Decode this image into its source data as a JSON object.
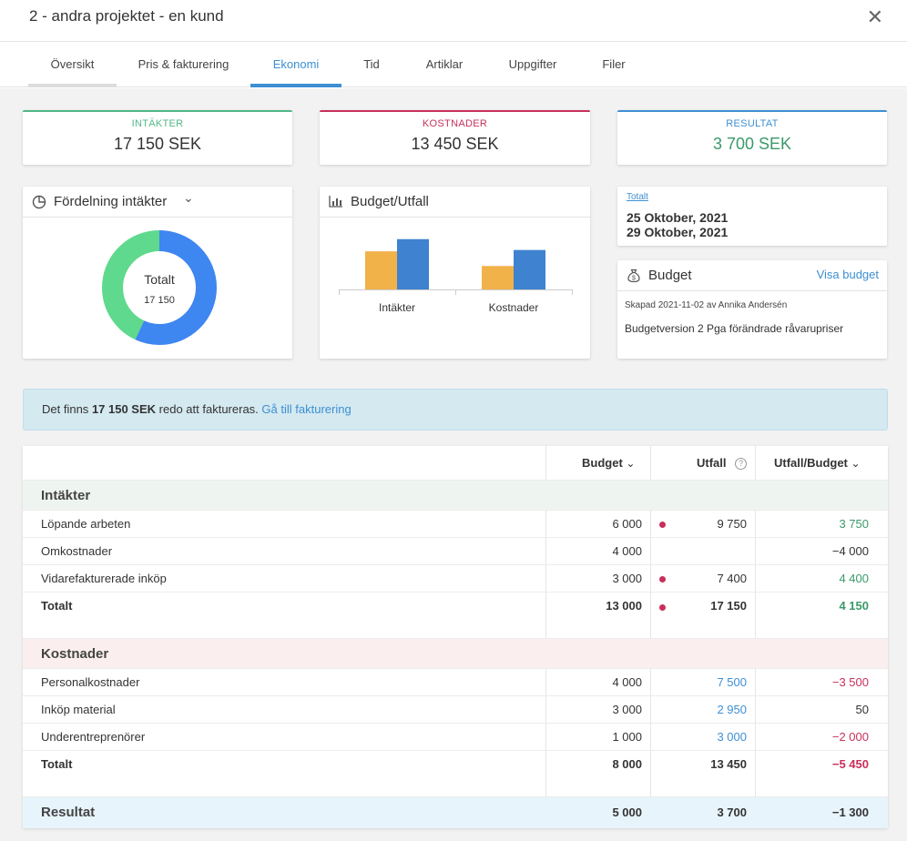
{
  "window": {
    "title": "2 - andra projektet - en kund",
    "close_glyph": "✕"
  },
  "tabs": [
    {
      "label": "Översikt"
    },
    {
      "label": "Pris & fakturering"
    },
    {
      "label": "Ekonomi"
    },
    {
      "label": "Tid"
    },
    {
      "label": "Artiklar"
    },
    {
      "label": "Uppgifter"
    },
    {
      "label": "Filer"
    }
  ],
  "active_tab": "Ekonomi",
  "kpis": {
    "income": {
      "label": "INTÄKTER",
      "value": "17 150 SEK",
      "color": "#52b788"
    },
    "costs": {
      "label": "KOSTNADER",
      "value": "13 450 SEK",
      "color": "#c8305a"
    },
    "result": {
      "label": "RESULTAT",
      "value": "3 700 SEK",
      "color": "#3d8fd3"
    }
  },
  "distribution": {
    "title": "Fördelning intäkter",
    "chevron": "⌄",
    "center_label": "Totalt",
    "center_value": "17 150",
    "slices": [
      {
        "value": 9750,
        "color": "#3e86f0"
      },
      {
        "value": 7400,
        "color": "#5fd98d"
      }
    ]
  },
  "budget_outcome": {
    "title": "Budget/Utfall",
    "chart_data": {
      "type": "bar",
      "categories": [
        "Intäkter",
        "Kostnader"
      ],
      "series": [
        {
          "values": [
            13000,
            8000
          ],
          "color": "#f2b24a"
        },
        {
          "values": [
            17150,
            13450
          ],
          "color": "#3e82d0"
        }
      ],
      "ylim": [
        0,
        18000
      ]
    }
  },
  "dates": {
    "label": "Totalt",
    "start": "25 Oktober, 2021",
    "end": "29 Oktober, 2021"
  },
  "budget_panel": {
    "title": "Budget",
    "link": "Visa budget",
    "created": "Skapad 2021-11-02 av Annika Andersén",
    "description": "Budgetversion 2 Pga förändrade råvarupriser"
  },
  "notice": {
    "prefix": "Det finns",
    "amount": "17 150 SEK",
    "middle": "redo att faktureras.",
    "link": "Gå till fakturering"
  },
  "table": {
    "headers": {
      "budget": "Budget",
      "utfall": "Utfall",
      "diff": "Utfall/Budget",
      "chevron": "⌄",
      "help": "?"
    },
    "income": {
      "title": "Intäkter",
      "rows": [
        {
          "label": "Löpande arbeten",
          "budget": "6 000",
          "utfall": "9 750",
          "diff": "3 750",
          "dot": true
        },
        {
          "label": "Omkostnader",
          "budget": "4 000",
          "utfall": "",
          "diff": "−4 000",
          "dot": false
        },
        {
          "label": "Vidarefakturerade inköp",
          "budget": "3 000",
          "utfall": "7 400",
          "diff": "4 400",
          "dot": true
        }
      ],
      "total": {
        "label": "Totalt",
        "budget": "13 000",
        "utfall": "17 150",
        "diff": "4 150"
      }
    },
    "costs": {
      "title": "Kostnader",
      "rows": [
        {
          "label": "Personalkostnader",
          "budget": "4 000",
          "utfall": "7 500",
          "diff": "−3 500"
        },
        {
          "label": "Inköp material",
          "budget": "3 000",
          "utfall": "2 950",
          "diff": "50"
        },
        {
          "label": "Underentreprenörer",
          "budget": "1 000",
          "utfall": "3 000",
          "diff": "−2 000"
        }
      ],
      "total": {
        "label": "Totalt",
        "budget": "8 000",
        "utfall": "13 450",
        "diff": "−5 450"
      }
    },
    "result": {
      "label": "Resultat",
      "budget": "5 000",
      "utfall": "3 700",
      "diff": "−1 300"
    }
  }
}
